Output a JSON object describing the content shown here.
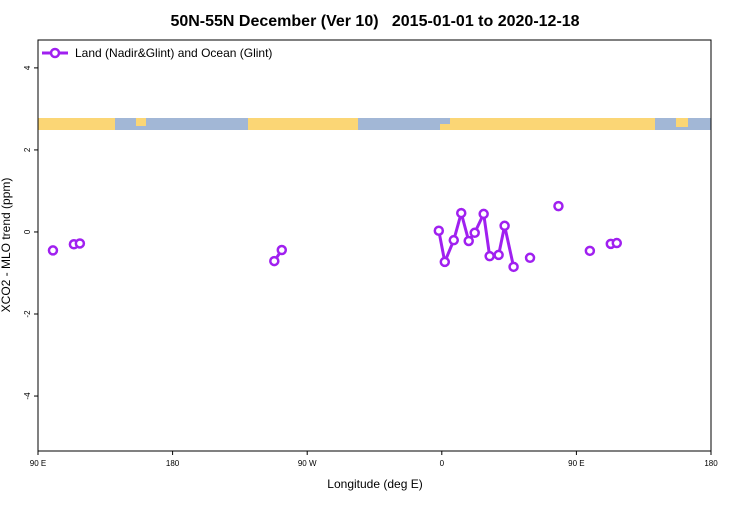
{
  "chart_data": {
    "type": "line",
    "title": "50N-55N December (Ver 10)   2015-01-01 to 2020-12-18",
    "xlabel": "Longitude (deg E)",
    "ylabel": "XCO2 - MLO trend (ppm)",
    "x": [
      100,
      null,
      114,
      118,
      null,
      248,
      253,
      null,
      358,
      362,
      368,
      373,
      378,
      382,
      388,
      392,
      398,
      402,
      408,
      null,
      419,
      null,
      438,
      null,
      459,
      null,
      473,
      477
    ],
    "series": [
      {
        "name": "Land (Nadir&Glint) and Ocean (Glint)",
        "color": "#a020f0",
        "values": [
          -0.45,
          null,
          -0.3,
          -0.28,
          null,
          -0.71,
          -0.44,
          null,
          0.03,
          -0.73,
          -0.2,
          0.46,
          -0.22,
          -0.02,
          0.44,
          -0.59,
          -0.56,
          0.15,
          -0.85,
          null,
          -0.63,
          null,
          0.63,
          null,
          -0.46,
          null,
          -0.29,
          -0.27
        ]
      }
    ],
    "xlim": [
      90,
      540
    ],
    "xticks": [
      {
        "value": 90,
        "label": "90 E"
      },
      180,
      {
        "value": 270,
        "label": "90 W"
      },
      {
        "value": 360,
        "label": "0"
      },
      {
        "value": 450,
        "label": "90 E"
      },
      {
        "value": 540,
        "label": "180"
      }
    ],
    "ylim": [
      -5.34,
      4.68
    ],
    "yticks": [
      -4,
      -2,
      0,
      2,
      4
    ],
    "legend": "top-left"
  }
}
